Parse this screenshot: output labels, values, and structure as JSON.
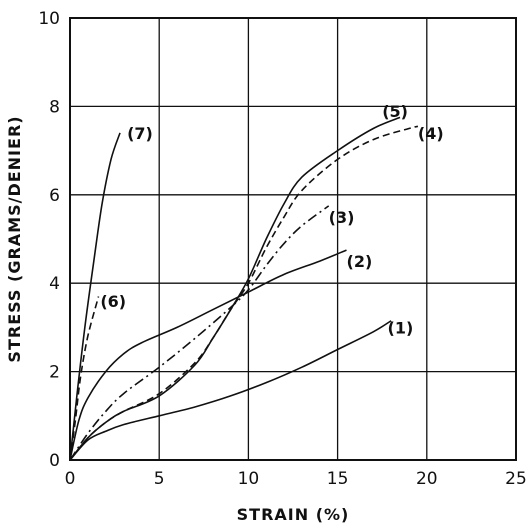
{
  "chart_data": {
    "type": "line",
    "title": "",
    "xlabel": "STRAIN (%)",
    "ylabel": "STRESS (GRAMS/DENIER)",
    "xlim": [
      0,
      25
    ],
    "ylim": [
      0,
      10
    ],
    "x_ticks": [
      0,
      5,
      10,
      15,
      20,
      25
    ],
    "y_ticks": [
      0,
      2,
      4,
      6,
      8,
      10
    ],
    "x_tick_labels": [
      "0",
      "5",
      "10",
      "15",
      "20",
      "25"
    ],
    "y_tick_labels": [
      "0",
      "2",
      "4",
      "6",
      "8",
      "10"
    ],
    "grid": true,
    "legend": "none",
    "series": [
      {
        "name": "(1)",
        "style": "solid",
        "label_at": [
          17.8,
          3.0
        ],
        "points": [
          [
            0,
            0
          ],
          [
            1,
            0.45
          ],
          [
            2,
            0.65
          ],
          [
            3,
            0.8
          ],
          [
            5,
            1.0
          ],
          [
            7,
            1.2
          ],
          [
            9,
            1.45
          ],
          [
            11,
            1.75
          ],
          [
            13,
            2.1
          ],
          [
            15,
            2.5
          ],
          [
            17,
            2.9
          ],
          [
            18,
            3.15
          ]
        ]
      },
      {
        "name": "(2)",
        "style": "solid",
        "label_at": [
          15.5,
          4.5
        ],
        "points": [
          [
            0,
            0
          ],
          [
            0.5,
            0.9
          ],
          [
            1,
            1.4
          ],
          [
            2,
            2.0
          ],
          [
            3,
            2.4
          ],
          [
            4,
            2.65
          ],
          [
            6,
            3.0
          ],
          [
            8,
            3.4
          ],
          [
            10,
            3.8
          ],
          [
            12,
            4.2
          ],
          [
            14,
            4.5
          ],
          [
            15.5,
            4.75
          ]
        ]
      },
      {
        "name": "(3)",
        "style": "dash-dot",
        "label_at": [
          14.5,
          5.5
        ],
        "points": [
          [
            0,
            0
          ],
          [
            1,
            0.6
          ],
          [
            2,
            1.1
          ],
          [
            3,
            1.5
          ],
          [
            5,
            2.1
          ],
          [
            7,
            2.75
          ],
          [
            9,
            3.45
          ],
          [
            10,
            3.85
          ],
          [
            11,
            4.4
          ],
          [
            12,
            4.9
          ],
          [
            13,
            5.3
          ],
          [
            14.5,
            5.75
          ]
        ]
      },
      {
        "name": "(4)",
        "style": "dashed",
        "label_at": [
          19.5,
          7.4
        ],
        "points": [
          [
            0,
            0
          ],
          [
            1,
            0.5
          ],
          [
            2,
            0.85
          ],
          [
            3,
            1.1
          ],
          [
            5,
            1.5
          ],
          [
            7,
            2.2
          ],
          [
            8,
            2.75
          ],
          [
            9,
            3.4
          ],
          [
            10,
            4.0
          ],
          [
            11,
            4.8
          ],
          [
            12,
            5.5
          ],
          [
            13,
            6.1
          ],
          [
            15,
            6.8
          ],
          [
            17,
            7.25
          ],
          [
            19,
            7.5
          ],
          [
            19.5,
            7.55
          ]
        ]
      },
      {
        "name": "(5)",
        "style": "solid",
        "label_at": [
          17.5,
          7.9
        ],
        "points": [
          [
            0,
            0
          ],
          [
            1,
            0.5
          ],
          [
            2,
            0.85
          ],
          [
            3,
            1.1
          ],
          [
            5,
            1.45
          ],
          [
            7,
            2.15
          ],
          [
            8,
            2.75
          ],
          [
            9,
            3.4
          ],
          [
            10,
            4.1
          ],
          [
            11,
            5.0
          ],
          [
            12,
            5.8
          ],
          [
            13,
            6.4
          ],
          [
            15,
            7.0
          ],
          [
            17,
            7.5
          ],
          [
            18.5,
            7.75
          ]
        ]
      },
      {
        "name": "(6)",
        "style": "dashed",
        "label_at": [
          1.7,
          3.6
        ],
        "points": [
          [
            0,
            0
          ],
          [
            0.3,
            0.9
          ],
          [
            0.6,
            1.9
          ],
          [
            1,
            2.8
          ],
          [
            1.6,
            3.7
          ]
        ]
      },
      {
        "name": "(7)",
        "style": "solid",
        "label_at": [
          3.2,
          7.4
        ],
        "points": [
          [
            0,
            0
          ],
          [
            0.4,
            1.5
          ],
          [
            0.8,
            2.9
          ],
          [
            1.3,
            4.4
          ],
          [
            1.8,
            5.8
          ],
          [
            2.3,
            6.8
          ],
          [
            2.8,
            7.4
          ]
        ]
      }
    ]
  }
}
